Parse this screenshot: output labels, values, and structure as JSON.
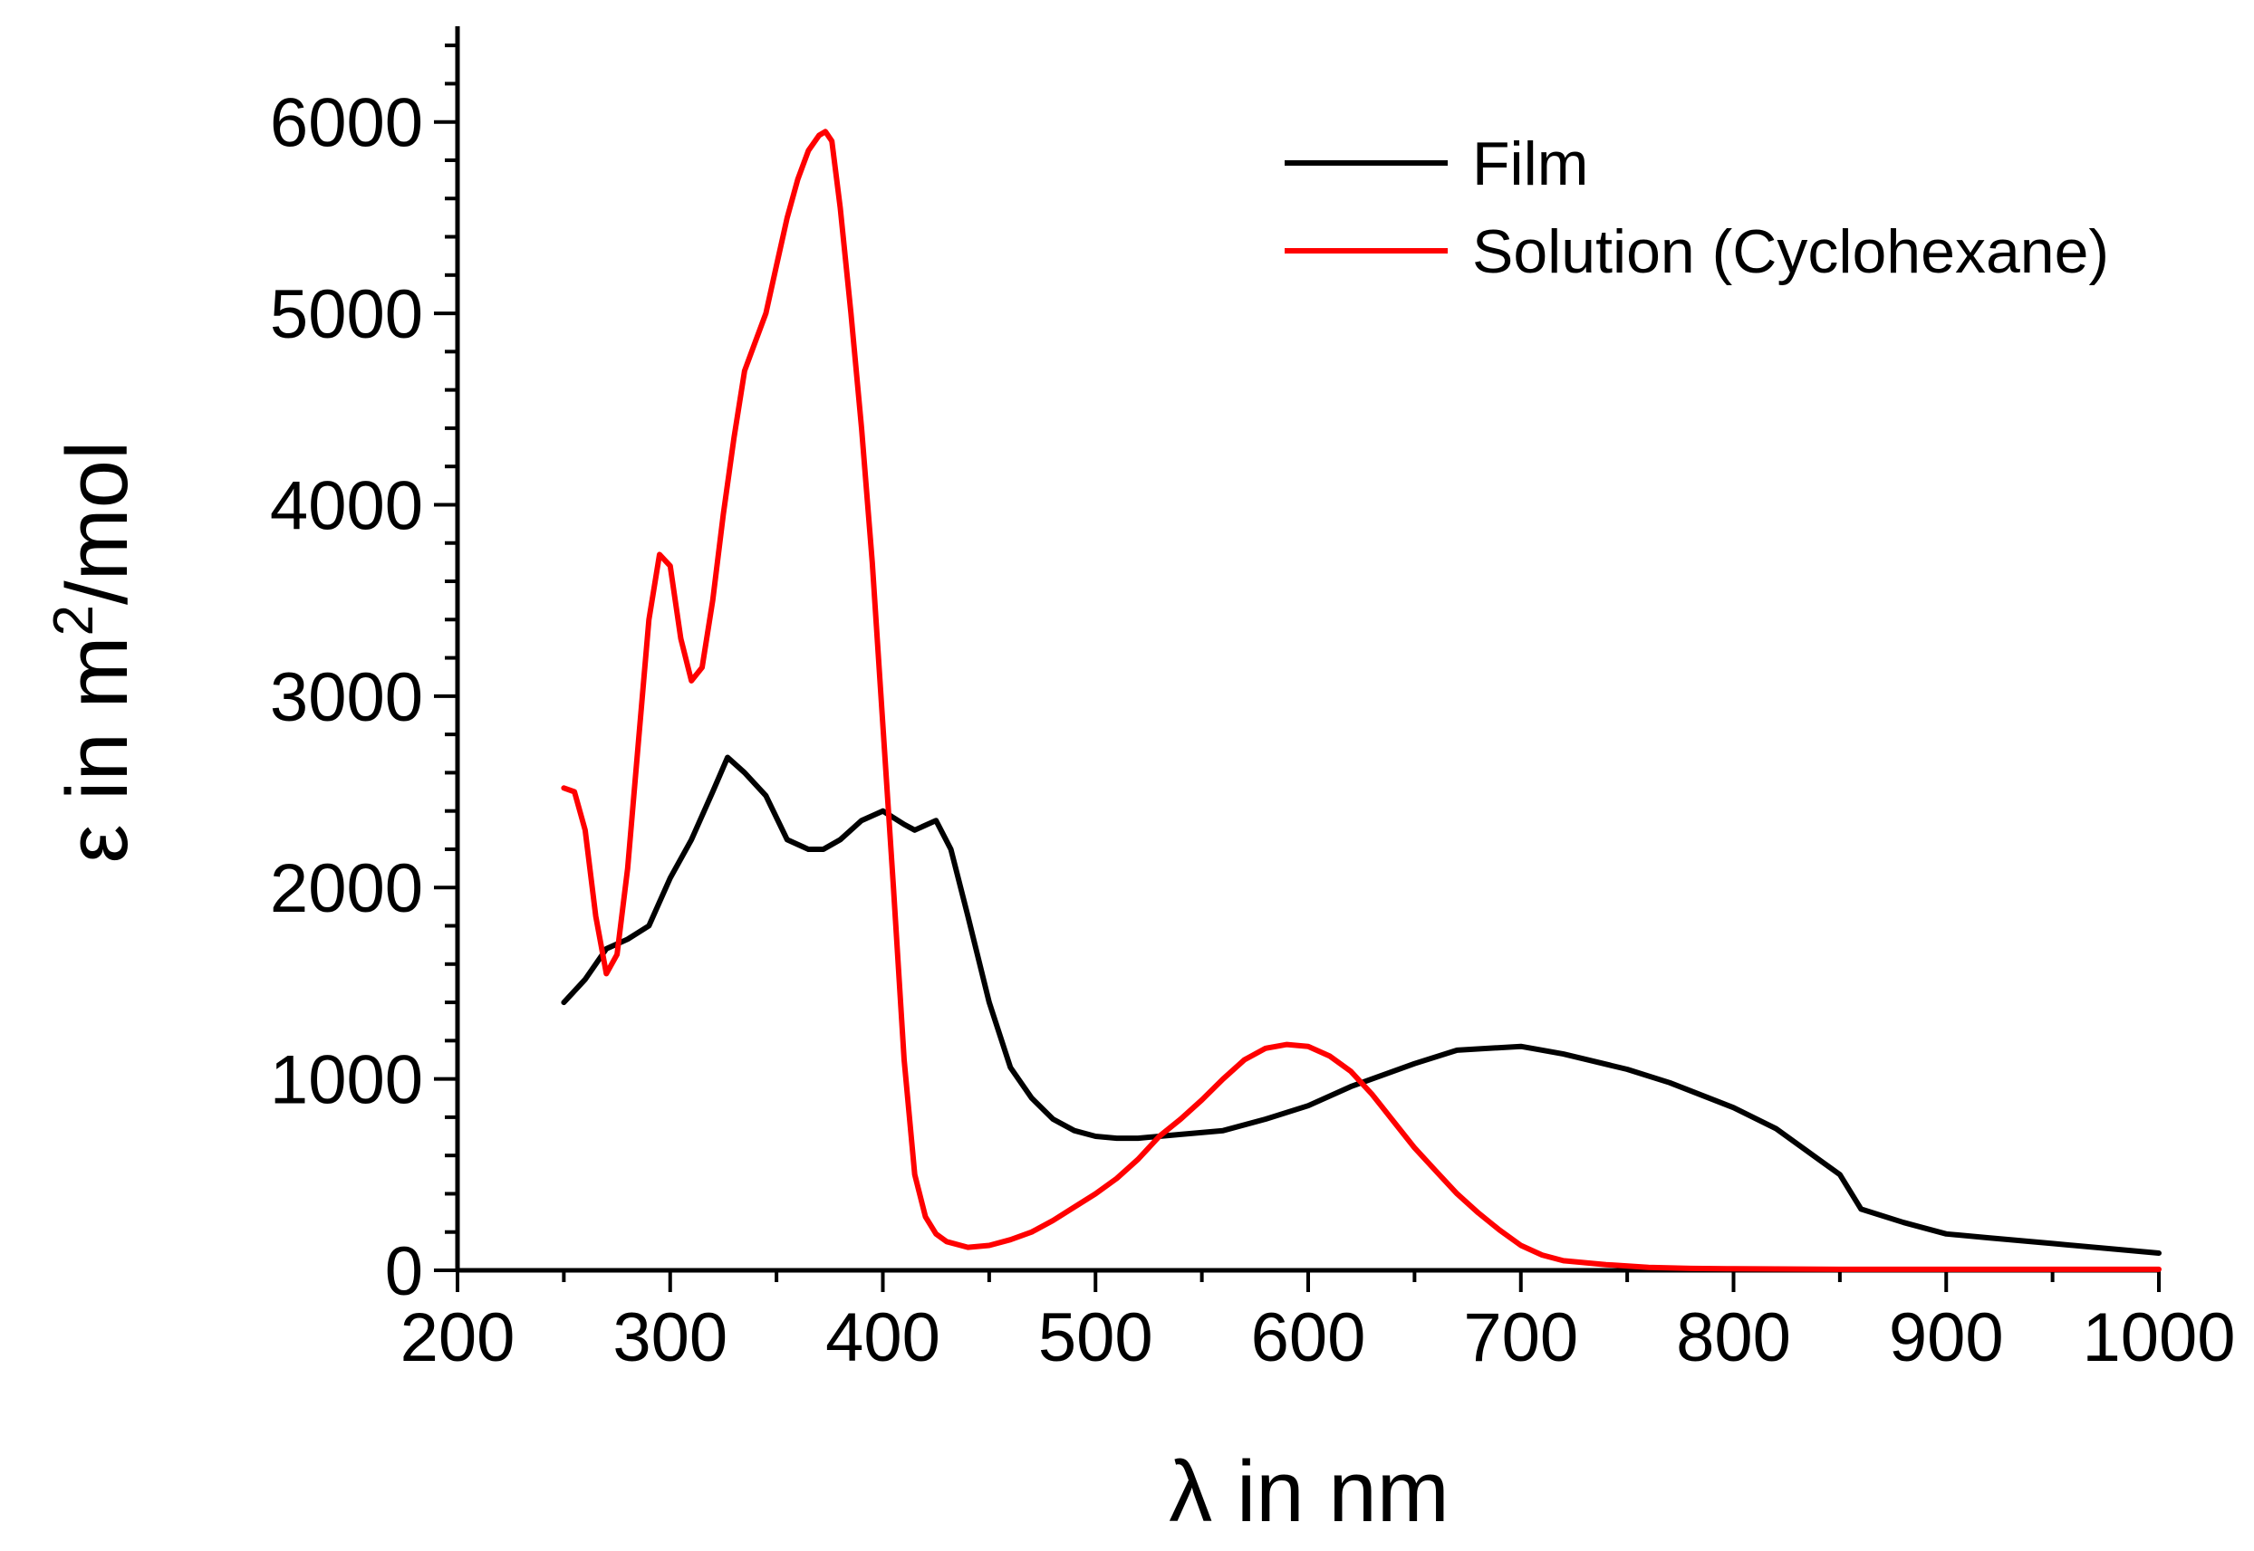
{
  "chart_data": {
    "type": "line",
    "title": "",
    "xlabel": "λ in nm",
    "ylabel": {
      "prefix": "ε in m",
      "superscript": "2",
      "suffix": "/mol"
    },
    "xlim": [
      200,
      1000
    ],
    "ylim": [
      0,
      6500
    ],
    "xticks": [
      200,
      300,
      400,
      500,
      600,
      700,
      800,
      900,
      1000
    ],
    "yticks": [
      0,
      1000,
      2000,
      3000,
      4000,
      5000,
      6000
    ],
    "xtick_labels": [
      "200",
      "300",
      "400",
      "500",
      "600",
      "700",
      "800",
      "900",
      "1000"
    ],
    "ytick_labels": [
      "0",
      "1000",
      "2000",
      "3000",
      "4000",
      "5000",
      "6000"
    ],
    "legend_position": "top-right",
    "series": [
      {
        "name": "Film",
        "color": "#000000",
        "x": [
          250,
          260,
          270,
          280,
          290,
          300,
          310,
          320,
          327,
          335,
          345,
          355,
          365,
          372,
          380,
          390,
          400,
          410,
          415,
          425,
          432,
          440,
          450,
          460,
          470,
          480,
          490,
          500,
          510,
          520,
          530,
          540,
          560,
          580,
          600,
          620,
          650,
          670,
          700,
          720,
          750,
          770,
          800,
          820,
          840,
          850,
          860,
          880,
          900,
          920,
          950,
          1000
        ],
        "y": [
          1400,
          1520,
          1680,
          1730,
          1800,
          2050,
          2250,
          2500,
          2680,
          2600,
          2480,
          2250,
          2200,
          2200,
          2250,
          2350,
          2400,
          2330,
          2300,
          2350,
          2200,
          1850,
          1400,
          1060,
          900,
          790,
          730,
          700,
          690,
          690,
          700,
          710,
          730,
          790,
          860,
          960,
          1080,
          1150,
          1170,
          1130,
          1050,
          980,
          850,
          740,
          580,
          500,
          320,
          250,
          190,
          170,
          140,
          90
        ]
      },
      {
        "name": "Solution (Cyclohexane)",
        "color": "#ff0000",
        "x": [
          250,
          255,
          260,
          265,
          270,
          275,
          280,
          285,
          290,
          295,
          300,
          305,
          310,
          315,
          320,
          325,
          330,
          335,
          340,
          345,
          350,
          355,
          360,
          365,
          370,
          373,
          376,
          380,
          385,
          390,
          395,
          400,
          405,
          410,
          415,
          420,
          425,
          430,
          440,
          450,
          460,
          470,
          480,
          490,
          500,
          510,
          520,
          530,
          540,
          550,
          560,
          570,
          580,
          590,
          600,
          610,
          620,
          630,
          640,
          650,
          660,
          670,
          680,
          690,
          700,
          710,
          720,
          740,
          760,
          780,
          800,
          850,
          900,
          1000
        ],
        "y": [
          2520,
          2500,
          2300,
          1850,
          1550,
          1650,
          2100,
          2750,
          3400,
          3740,
          3680,
          3300,
          3080,
          3150,
          3500,
          3950,
          4350,
          4700,
          4850,
          5000,
          5250,
          5500,
          5700,
          5850,
          5930,
          5950,
          5900,
          5550,
          5000,
          4400,
          3700,
          2850,
          2000,
          1100,
          500,
          280,
          190,
          150,
          120,
          130,
          160,
          200,
          260,
          330,
          400,
          480,
          580,
          700,
          790,
          890,
          1000,
          1100,
          1160,
          1180,
          1170,
          1120,
          1040,
          920,
          780,
          640,
          520,
          400,
          300,
          210,
          130,
          80,
          50,
          30,
          15,
          10,
          8,
          5,
          5,
          5
        ]
      }
    ]
  }
}
